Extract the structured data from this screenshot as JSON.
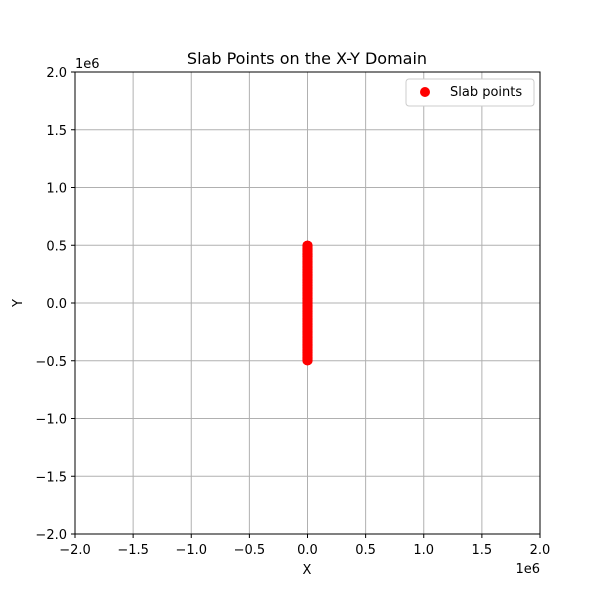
{
  "chart_data": {
    "type": "scatter",
    "title": "Slab Points on the X-Y Domain",
    "xlabel": "X",
    "ylabel": "Y",
    "xlim": [
      -2000000,
      2000000
    ],
    "ylim": [
      -2000000,
      2000000
    ],
    "x_offset_label": "1e6",
    "y_offset_label": "1e6",
    "xticks": [
      -2000000,
      -1500000,
      -1000000,
      -500000,
      0,
      500000,
      1000000,
      1500000,
      2000000
    ],
    "yticks": [
      -2000000,
      -1500000,
      -1000000,
      -500000,
      0,
      500000,
      1000000,
      1500000,
      2000000
    ],
    "xtick_labels": [
      "−2.0",
      "−1.5",
      "−1.0",
      "−0.5",
      "0.0",
      "0.5",
      "1.0",
      "1.5",
      "2.0"
    ],
    "ytick_labels": [
      "−2.0",
      "−1.5",
      "−1.0",
      "−0.5",
      "0.0",
      "0.5",
      "1.0",
      "1.5",
      "2.0"
    ],
    "grid": true,
    "legend_position": "top-right",
    "series": [
      {
        "name": "Slab points",
        "color": "#ff0000",
        "x_range": [
          -5000,
          5000
        ],
        "y_range": [
          -500000,
          500000
        ]
      }
    ]
  }
}
